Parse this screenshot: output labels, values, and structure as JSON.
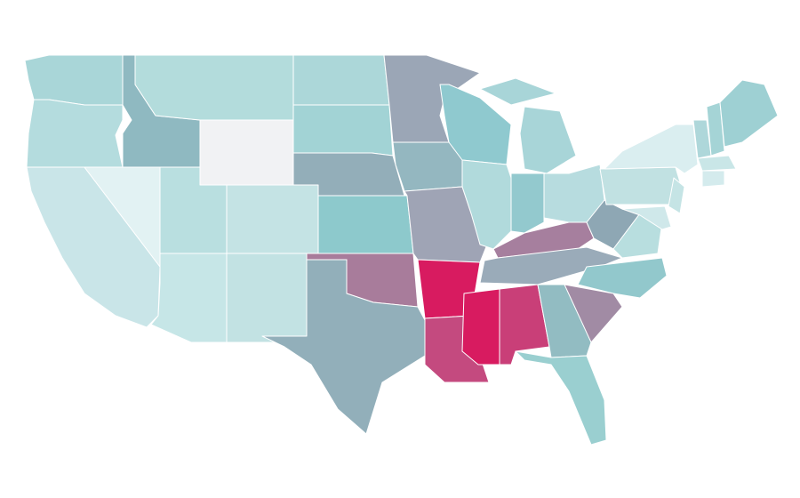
{
  "map": {
    "type": "choropleth",
    "regions": [
      {
        "color": "#a9d6d8"
      },
      {
        "color": "#b4dcde"
      },
      {
        "color": "#c9e5e8"
      },
      {
        "color": "#e2f2f3"
      },
      {
        "color": "#8fb9c1"
      },
      {
        "color": "#b3dcdc"
      },
      {
        "color": "#f1f2f4"
      },
      {
        "color": "#b9dfe0"
      },
      {
        "color": "#c4e3e4"
      },
      {
        "color": "#c6e6e7"
      },
      {
        "color": "#c2e2e3"
      },
      {
        "color": "#acd7d9"
      },
      {
        "color": "#a2d3d5"
      },
      {
        "color": "#93aeb9"
      },
      {
        "color": "#8dc9cc"
      },
      {
        "color": "#a87c9b"
      },
      {
        "color": "#92afba"
      },
      {
        "color": "#9ba6b6"
      },
      {
        "color": "#94b7c0"
      },
      {
        "color": "#9fa4b5"
      },
      {
        "color": "#d81b60"
      },
      {
        "color": "#c44a7f"
      },
      {
        "color": "#d81b60"
      },
      {
        "color": "#c93f78"
      },
      {
        "color": "#8fc9cf"
      },
      {
        "color": "#b1dadc"
      },
      {
        "color": "#93c9ce"
      },
      {
        "color": "#a8d5d8"
      },
      {
        "color": "#a8d5d8"
      },
      {
        "color": "#b7dcdf"
      },
      {
        "color": "#a67f9e"
      },
      {
        "color": "#9aabb9"
      },
      {
        "color": "#8ea7b4"
      },
      {
        "color": "#b8dedf"
      },
      {
        "color": "#92c8cc"
      },
      {
        "color": "#a18ba4"
      },
      {
        "color": "#92bcc2"
      },
      {
        "color": "#9acfd0"
      },
      {
        "color": "#c1e1e2"
      },
      {
        "color": "#daeef0"
      },
      {
        "color": "#c5e4e5"
      },
      {
        "color": "#cfe8ea"
      },
      {
        "color": "#aed7da"
      },
      {
        "color": "#a5d4d6"
      },
      {
        "color": "#9ed0d3"
      },
      {
        "color": "#c9e6e7"
      },
      {
        "color": "#d4ebed"
      }
    ]
  }
}
